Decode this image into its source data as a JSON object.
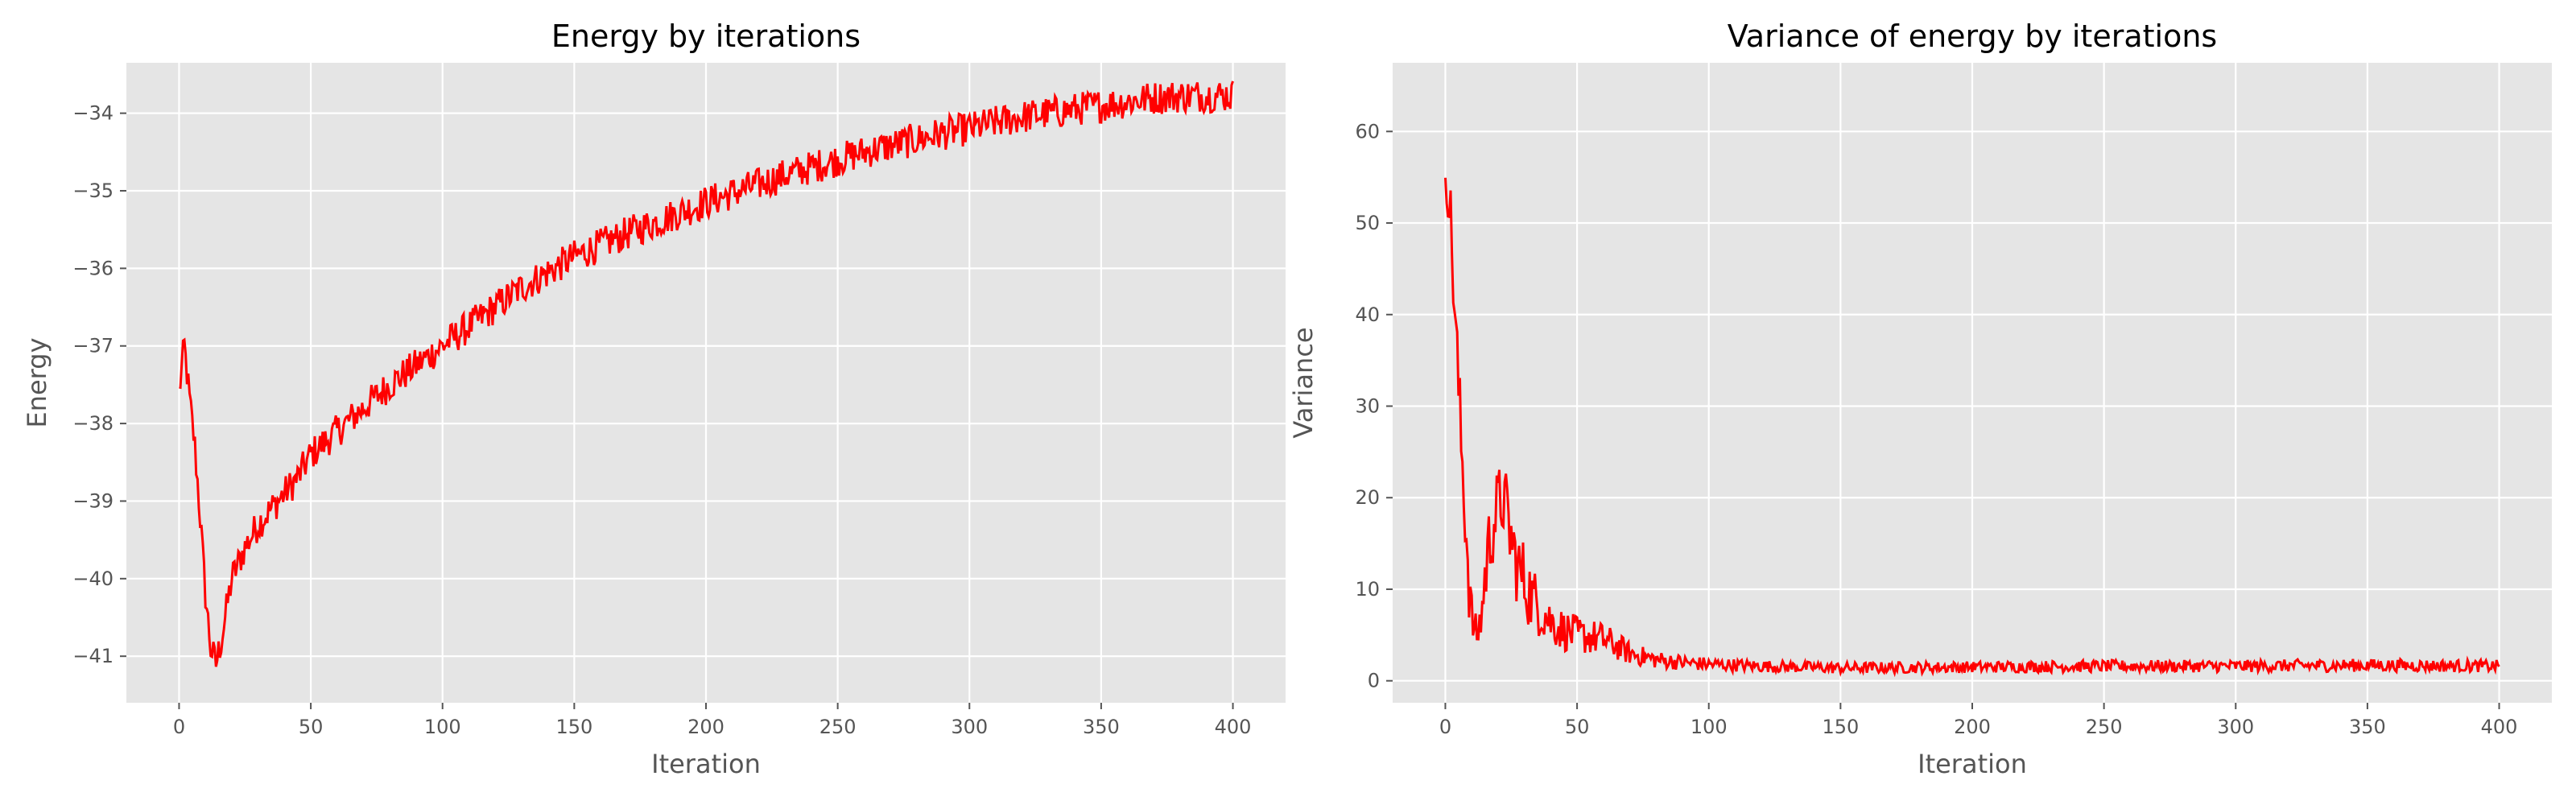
{
  "chart_data": [
    {
      "type": "line",
      "title": "Energy by iterations",
      "xlabel": "Iteration",
      "ylabel": "Energy",
      "xlim": [
        -20,
        420
      ],
      "ylim": [
        -41.6,
        -33.35
      ],
      "xticks": [
        0,
        50,
        100,
        150,
        200,
        250,
        300,
        350,
        400
      ],
      "yticks": [
        -41,
        -40,
        -39,
        -38,
        -37,
        -36,
        -35,
        -34
      ],
      "xtick_labels": [
        "0",
        "50",
        "100",
        "150",
        "200",
        "250",
        "300",
        "350",
        "400"
      ],
      "ytick_labels": [
        "−41",
        "−40",
        "−39",
        "−38",
        "−37",
        "−36",
        "−35",
        "−34"
      ],
      "grid": true,
      "color": "#ff0000",
      "series": [
        {
          "x": [
            0,
            2,
            4,
            6,
            8,
            10,
            12,
            14,
            16,
            18,
            20,
            25,
            30,
            35,
            40,
            45,
            50,
            60,
            70,
            80,
            90,
            100,
            110,
            120,
            130,
            140,
            150,
            160,
            170,
            180,
            190,
            200,
            210,
            220,
            230,
            240,
            250,
            260,
            270,
            280,
            290,
            300,
            310,
            320,
            330,
            340,
            350,
            360,
            370,
            380,
            390,
            400
          ],
          "y": [
            -37.6,
            -37.0,
            -37.7,
            -38.3,
            -39.2,
            -40.2,
            -40.9,
            -41.1,
            -40.8,
            -40.4,
            -40.0,
            -39.6,
            -39.3,
            -39.1,
            -38.9,
            -38.7,
            -38.4,
            -38.1,
            -37.8,
            -37.5,
            -37.25,
            -37.0,
            -36.75,
            -36.5,
            -36.25,
            -36.05,
            -35.85,
            -35.7,
            -35.55,
            -35.42,
            -35.28,
            -35.15,
            -35.03,
            -34.92,
            -34.8,
            -34.7,
            -34.6,
            -34.5,
            -34.42,
            -34.34,
            -34.26,
            -34.2,
            -34.12,
            -34.05,
            -34.0,
            -33.95,
            -33.9,
            -33.85,
            -33.8,
            -33.78,
            -33.77,
            -33.77
          ],
          "noise": 0.22
        }
      ]
    },
    {
      "type": "line",
      "title": "Variance of energy by iterations",
      "xlabel": "Iteration",
      "ylabel": "Variance",
      "xlim": [
        -20,
        420
      ],
      "ylim": [
        -2.4,
        67.5
      ],
      "xticks": [
        0,
        50,
        100,
        150,
        200,
        250,
        300,
        350,
        400
      ],
      "yticks": [
        0,
        10,
        20,
        30,
        40,
        50,
        60
      ],
      "xtick_labels": [
        "0",
        "50",
        "100",
        "150",
        "200",
        "250",
        "300",
        "350",
        "400"
      ],
      "ytick_labels": [
        "0",
        "10",
        "20",
        "30",
        "40",
        "50",
        "60"
      ],
      "grid": true,
      "color": "#ff0000",
      "series": [
        {
          "x": [
            0,
            1,
            2,
            3,
            4,
            5,
            6,
            7,
            8,
            9,
            10,
            11,
            12,
            13,
            14,
            15,
            16,
            18,
            20,
            22,
            24,
            26,
            28,
            30,
            33,
            36,
            40,
            45,
            50,
            55,
            60,
            65,
            70,
            80,
            90,
            100,
            120,
            150,
            200,
            250,
            300,
            350,
            400
          ],
          "y": [
            57,
            55,
            50,
            44,
            38,
            32,
            26,
            21,
            16,
            11,
            7,
            5.5,
            5,
            6,
            8,
            11,
            14,
            17,
            19,
            20,
            17,
            14,
            12,
            11,
            9,
            8,
            6.5,
            5.5,
            5,
            4.8,
            4.5,
            3.8,
            3.0,
            2.3,
            2.0,
            1.8,
            1.6,
            1.4,
            1.5,
            1.6,
            1.6,
            1.7,
            1.6
          ],
          "noise": 2.5
        }
      ]
    }
  ]
}
